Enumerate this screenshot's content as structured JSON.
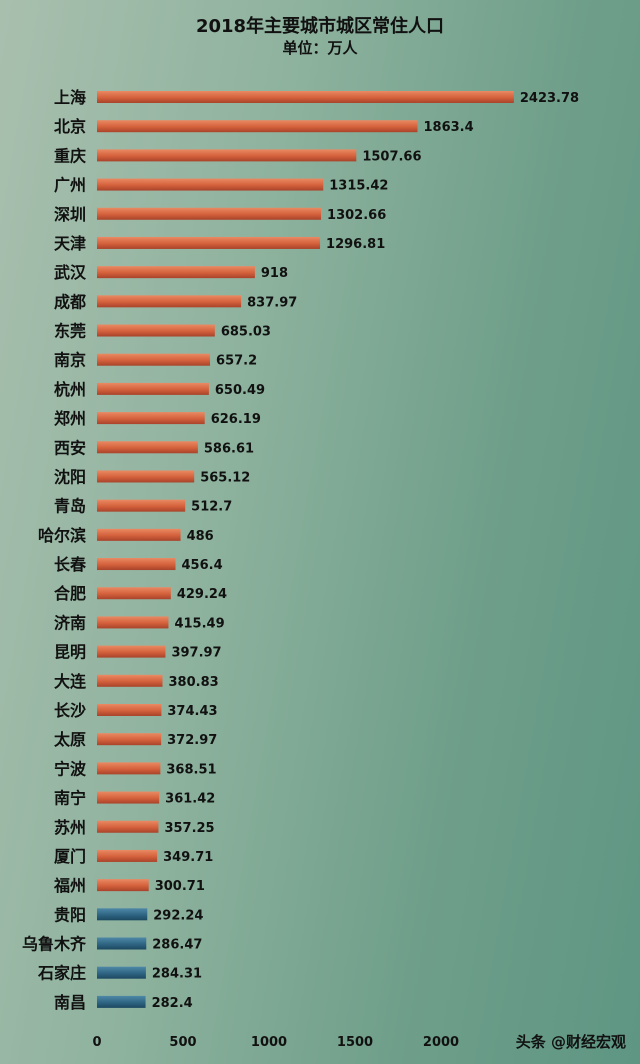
{
  "chart_data": {
    "type": "bar",
    "orientation": "horizontal",
    "title": "2018年主要城市城区常住人口",
    "subtitle": "单位：万人",
    "categories": [
      "上海",
      "北京",
      "重庆",
      "广州",
      "深圳",
      "天津",
      "武汉",
      "成都",
      "东莞",
      "南京",
      "杭州",
      "郑州",
      "西安",
      "沈阳",
      "青岛",
      "哈尔滨",
      "长春",
      "合肥",
      "济南",
      "昆明",
      "大连",
      "长沙",
      "太原",
      "宁波",
      "南宁",
      "苏州",
      "厦门",
      "福州",
      "贵阳",
      "乌鲁木齐",
      "石家庄",
      "南昌"
    ],
    "values": [
      2423.78,
      1863.4,
      1507.66,
      1315.42,
      1302.66,
      1296.81,
      918,
      837.97,
      685.03,
      657.2,
      650.49,
      626.19,
      586.61,
      565.12,
      512.7,
      486,
      456.4,
      429.24,
      415.49,
      397.97,
      380.83,
      374.43,
      372.97,
      368.51,
      361.42,
      357.25,
      349.71,
      300.71,
      292.24,
      286.47,
      284.31,
      282.4
    ],
    "value_labels": [
      "2423.78",
      "1863.4",
      "1507.66",
      "1315.42",
      "1302.66",
      "1296.81",
      "918",
      "837.97",
      "685.03",
      "657.2",
      "650.49",
      "626.19",
      "586.61",
      "565.12",
      "512.7",
      "486",
      "456.4",
      "429.24",
      "415.49",
      "397.97",
      "380.83",
      "374.43",
      "372.97",
      "368.51",
      "361.42",
      "357.25",
      "349.71",
      "300.71",
      "292.24",
      "286.47",
      "284.31",
      "282.4"
    ],
    "bar_colors": [
      "orange",
      "orange",
      "orange",
      "orange",
      "orange",
      "orange",
      "orange",
      "orange",
      "orange",
      "orange",
      "orange",
      "orange",
      "orange",
      "orange",
      "orange",
      "orange",
      "orange",
      "orange",
      "orange",
      "orange",
      "orange",
      "orange",
      "orange",
      "orange",
      "orange",
      "orange",
      "orange",
      "orange",
      "blue",
      "blue",
      "blue",
      "blue"
    ],
    "color_map": {
      "orange": "#d4613c",
      "blue": "#2e6582"
    },
    "xticks": [
      "0",
      "500",
      "1000",
      "1500",
      "2000"
    ],
    "xlim": [
      0,
      2500
    ],
    "grid": false,
    "legend": "none"
  },
  "watermark": "头条 @财经宏观"
}
